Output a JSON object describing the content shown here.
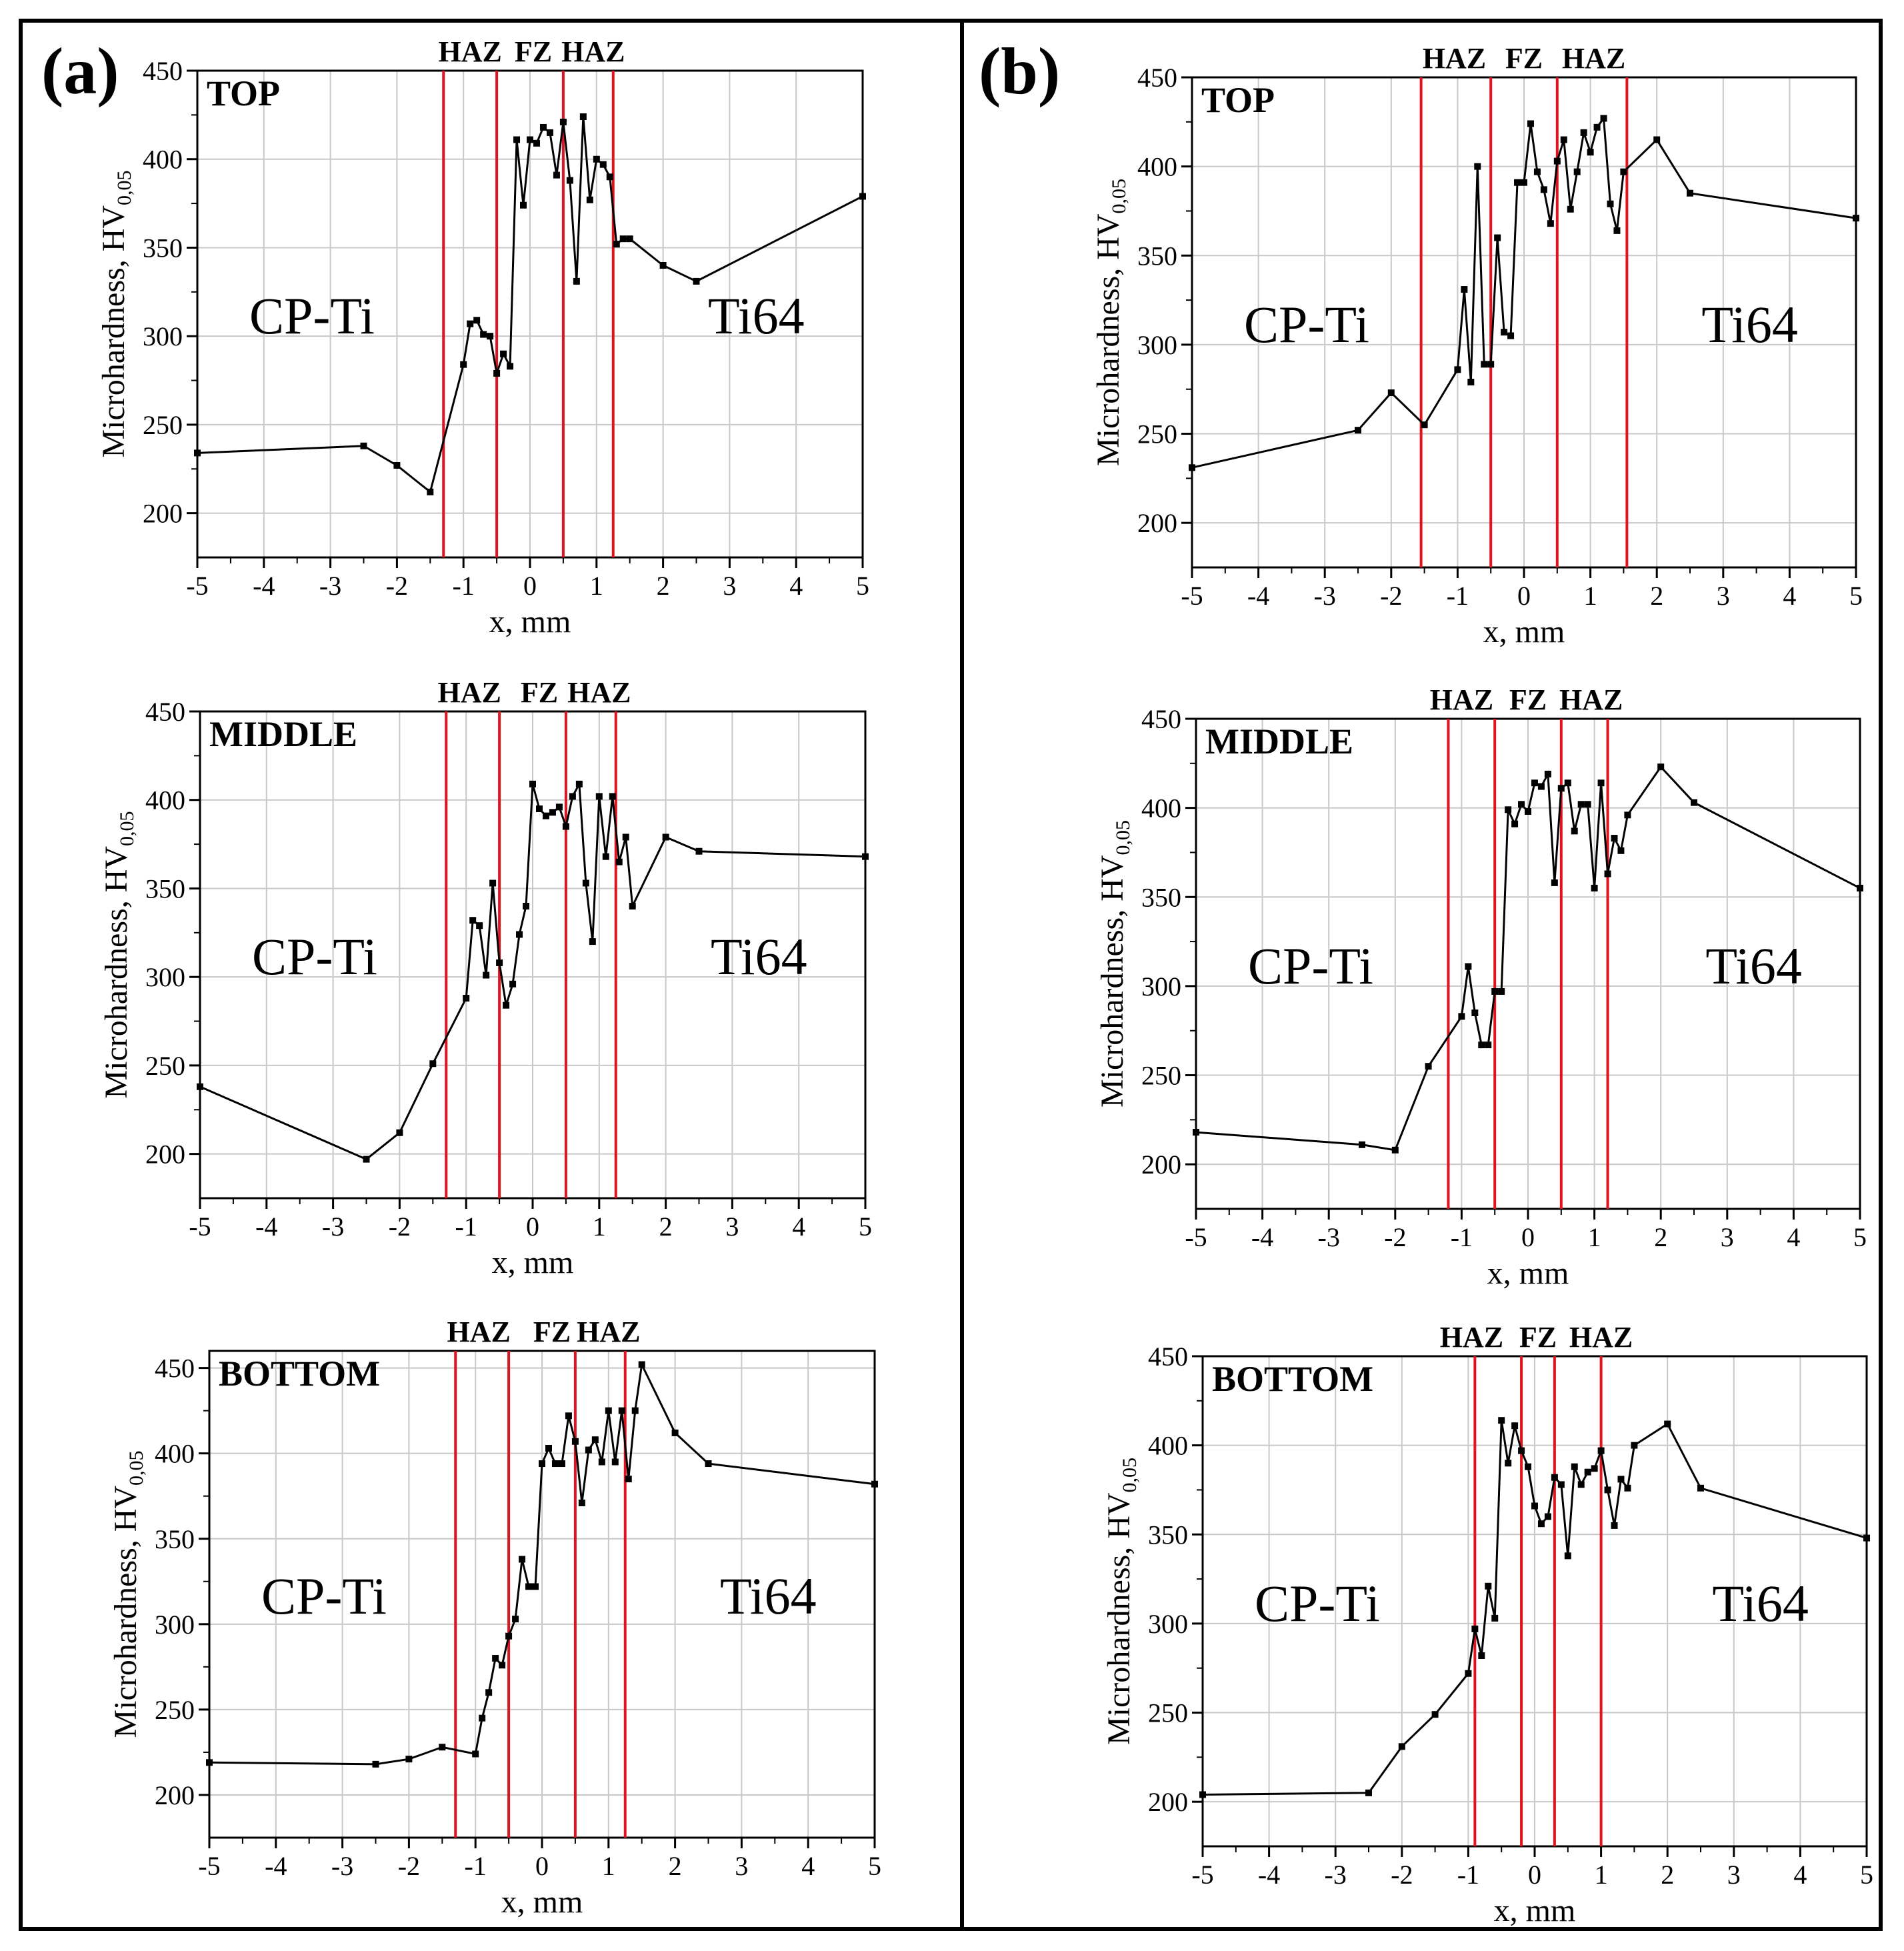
{
  "panels": [
    {
      "label": "(a)"
    },
    {
      "label": "(b)"
    }
  ],
  "chart_data": [
    {
      "type": "line",
      "panel": "(a)",
      "title": "TOP",
      "xlabel": "x, mm",
      "ylabel": "Microhardness, HV",
      "ylabel_sub": "0,05",
      "xlim": [
        -5,
        5
      ],
      "ylim": [
        175,
        450
      ],
      "xticks": [
        "-5",
        "-4",
        "-3",
        "-2",
        "-1",
        "0",
        "1",
        "2",
        "3",
        "4",
        "5"
      ],
      "yticks": [
        "200",
        "250",
        "300",
        "350",
        "400",
        "450"
      ],
      "zone_lines": [
        -1.3,
        -0.5,
        0.5,
        1.25
      ],
      "zone_labels": [
        {
          "text": "HAZ",
          "x": -0.9
        },
        {
          "text": "FZ",
          "x": 0.05
        },
        {
          "text": "HAZ",
          "x": 0.95
        }
      ],
      "left_label": "CP-Ti",
      "right_label": "Ti64",
      "x": [
        -5,
        -2.5,
        -2,
        -1.5,
        -1,
        -0.9,
        -0.8,
        -0.7,
        -0.6,
        -0.5,
        -0.4,
        -0.3,
        -0.2,
        -0.1,
        0,
        0.1,
        0.2,
        0.3,
        0.4,
        0.5,
        0.6,
        0.7,
        0.8,
        0.9,
        1,
        1.1,
        1.2,
        1.3,
        1.4,
        1.5,
        2,
        2.5,
        5
      ],
      "y": [
        234,
        238,
        227,
        212,
        284,
        307,
        309,
        301,
        300,
        279,
        290,
        283,
        411,
        374,
        411,
        409,
        418,
        415,
        391,
        421,
        388,
        331,
        424,
        377,
        400,
        397,
        390,
        352,
        355,
        355,
        340,
        331,
        379
      ]
    },
    {
      "type": "line",
      "panel": "(a)",
      "title": "MIDDLE",
      "xlabel": "x, mm",
      "ylabel": "Microhardness, HV",
      "ylabel_sub": "0,05",
      "xlim": [
        -5,
        5
      ],
      "ylim": [
        175,
        450
      ],
      "xticks": [
        "-5",
        "-4",
        "-3",
        "-2",
        "-1",
        "0",
        "1",
        "2",
        "3",
        "4",
        "5"
      ],
      "yticks": [
        "200",
        "250",
        "300",
        "350",
        "400",
        "450"
      ],
      "zone_lines": [
        -1.3,
        -0.5,
        0.5,
        1.25
      ],
      "zone_labels": [
        {
          "text": "HAZ",
          "x": -0.95
        },
        {
          "text": "FZ",
          "x": 0.1
        },
        {
          "text": "HAZ",
          "x": 1.0
        }
      ],
      "left_label": "CP-Ti",
      "right_label": "Ti64",
      "x": [
        -5,
        -2.5,
        -2,
        -1.5,
        -1,
        -0.9,
        -0.8,
        -0.7,
        -0.6,
        -0.5,
        -0.4,
        -0.3,
        -0.2,
        -0.1,
        0,
        0.1,
        0.2,
        0.3,
        0.4,
        0.5,
        0.6,
        0.7,
        0.8,
        0.9,
        1,
        1.1,
        1.2,
        1.3,
        1.4,
        1.5,
        2,
        2.5,
        5
      ],
      "y": [
        238,
        197,
        212,
        251,
        288,
        332,
        329,
        301,
        353,
        308,
        284,
        296,
        324,
        340,
        409,
        395,
        391,
        393,
        396,
        385,
        402,
        409,
        353,
        320,
        402,
        368,
        402,
        365,
        379,
        340,
        379,
        371,
        368
      ]
    },
    {
      "type": "line",
      "panel": "(a)",
      "title": "BOTTOM",
      "xlabel": "x, mm",
      "ylabel": "Microhardness, HV",
      "ylabel_sub": "0,05",
      "xlim": [
        -5,
        5
      ],
      "ylim": [
        175,
        460
      ],
      "xticks": [
        "-5",
        "-4",
        "-3",
        "-2",
        "-1",
        "0",
        "1",
        "2",
        "3",
        "4",
        "5"
      ],
      "yticks": [
        "200",
        "250",
        "300",
        "350",
        "400",
        "450"
      ],
      "zone_lines": [
        -1.3,
        -0.5,
        0.5,
        1.25
      ],
      "zone_labels": [
        {
          "text": "HAZ",
          "x": -0.95
        },
        {
          "text": "FZ",
          "x": 0.15
        },
        {
          "text": "HAZ",
          "x": 1.0
        }
      ],
      "left_label": "CP-Ti",
      "right_label": "Ti64",
      "x": [
        -5,
        -2.5,
        -2,
        -1.5,
        -1,
        -0.9,
        -0.8,
        -0.7,
        -0.6,
        -0.5,
        -0.4,
        -0.3,
        -0.2,
        -0.1,
        0,
        0.1,
        0.2,
        0.3,
        0.4,
        0.5,
        0.6,
        0.7,
        0.8,
        0.9,
        1,
        1.1,
        1.2,
        1.3,
        1.4,
        1.5,
        2,
        2.5,
        5
      ],
      "y": [
        219,
        218,
        221,
        228,
        224,
        245,
        260,
        280,
        276,
        293,
        303,
        338,
        322,
        322,
        394,
        403,
        394,
        394,
        422,
        407,
        371,
        402,
        408,
        395,
        425,
        395,
        425,
        385,
        425,
        452,
        412,
        394,
        382
      ]
    },
    {
      "type": "line",
      "panel": "(b)",
      "title": "TOP",
      "xlabel": "x, mm",
      "ylabel": "Microhardness, HV",
      "ylabel_sub": "0,05",
      "xlim": [
        -5,
        5
      ],
      "ylim": [
        175,
        450
      ],
      "xticks": [
        "-5",
        "-4",
        "-3",
        "-2",
        "-1",
        "0",
        "1",
        "2",
        "3",
        "4",
        "5"
      ],
      "yticks": [
        "200",
        "250",
        "300",
        "350",
        "400",
        "450"
      ],
      "zone_lines": [
        -1.55,
        -0.5,
        0.5,
        1.55
      ],
      "zone_labels": [
        {
          "text": "HAZ",
          "x": -1.05
        },
        {
          "text": "FZ",
          "x": 0.0
        },
        {
          "text": "HAZ",
          "x": 1.05
        }
      ],
      "left_label": "CP-Ti",
      "right_label": "Ti64",
      "x": [
        -5,
        -2.5,
        -2,
        -1.5,
        -1,
        -0.9,
        -0.8,
        -0.7,
        -0.6,
        -0.5,
        -0.4,
        -0.3,
        -0.2,
        -0.1,
        0,
        0.1,
        0.2,
        0.3,
        0.4,
        0.5,
        0.6,
        0.7,
        0.8,
        0.9,
        1,
        1.1,
        1.2,
        1.3,
        1.4,
        1.5,
        2,
        2.5,
        5
      ],
      "y": [
        231,
        252,
        273,
        255,
        286,
        331,
        279,
        400,
        289,
        289,
        360,
        307,
        305,
        391,
        391,
        424,
        397,
        387,
        368,
        403,
        415,
        376,
        397,
        419,
        408,
        422,
        427,
        379,
        364,
        397,
        415,
        385,
        371
      ]
    },
    {
      "type": "line",
      "panel": "(b)",
      "title": "MIDDLE",
      "xlabel": "x, mm",
      "ylabel": "Microhardness, HV",
      "ylabel_sub": "0,05",
      "xlim": [
        -5,
        5
      ],
      "ylim": [
        175,
        450
      ],
      "xticks": [
        "-5",
        "-4",
        "-3",
        "-2",
        "-1",
        "0",
        "1",
        "2",
        "3",
        "4",
        "5"
      ],
      "yticks": [
        "200",
        "250",
        "300",
        "350",
        "400",
        "450"
      ],
      "zone_lines": [
        -1.2,
        -0.5,
        0.5,
        1.2
      ],
      "zone_labels": [
        {
          "text": "HAZ",
          "x": -1.0
        },
        {
          "text": "FZ",
          "x": 0.0
        },
        {
          "text": "HAZ",
          "x": 0.95
        }
      ],
      "left_label": "CP-Ti",
      "right_label": "Ti64",
      "x": [
        -5,
        -2.5,
        -2,
        -1.5,
        -1,
        -0.9,
        -0.8,
        -0.7,
        -0.6,
        -0.5,
        -0.4,
        -0.3,
        -0.2,
        -0.1,
        0,
        0.1,
        0.2,
        0.3,
        0.4,
        0.5,
        0.6,
        0.7,
        0.8,
        0.9,
        1,
        1.1,
        1.2,
        1.3,
        1.4,
        1.5,
        2,
        2.5,
        5
      ],
      "y": [
        218,
        211,
        208,
        255,
        283,
        311,
        285,
        267,
        267,
        297,
        297,
        399,
        391,
        402,
        398,
        414,
        412,
        419,
        358,
        411,
        414,
        387,
        402,
        402,
        355,
        414,
        363,
        383,
        376,
        396,
        423,
        403,
        355
      ]
    },
    {
      "type": "line",
      "panel": "(b)",
      "title": "BOTTOM",
      "xlabel": "x, mm",
      "ylabel": "Microhardness, HV",
      "ylabel_sub": "0,05",
      "xlim": [
        -5,
        5
      ],
      "ylim": [
        175,
        450
      ],
      "xticks": [
        "-5",
        "-4",
        "-3",
        "-2",
        "-1",
        "0",
        "1",
        "2",
        "3",
        "4",
        "5"
      ],
      "yticks": [
        "200",
        "250",
        "300",
        "350",
        "400",
        "450"
      ],
      "zone_lines": [
        -0.9,
        -0.2,
        0.3,
        1.0
      ],
      "zone_labels": [
        {
          "text": "HAZ",
          "x": -0.95
        },
        {
          "text": "FZ",
          "x": 0.05
        },
        {
          "text": "HAZ",
          "x": 1.0
        }
      ],
      "left_label": "CP-Ti",
      "right_label": "Ti64",
      "x": [
        -5,
        -2.5,
        -2,
        -1.5,
        -1,
        -0.9,
        -0.8,
        -0.7,
        -0.6,
        -0.5,
        -0.4,
        -0.3,
        -0.2,
        -0.1,
        0,
        0.1,
        0.2,
        0.3,
        0.4,
        0.5,
        0.6,
        0.7,
        0.8,
        0.9,
        1,
        1.1,
        1.2,
        1.3,
        1.4,
        1.5,
        2,
        2.5,
        5
      ],
      "y": [
        204,
        205,
        231,
        249,
        272,
        297,
        282,
        321,
        303,
        414,
        390,
        411,
        397,
        388,
        366,
        356,
        360,
        382,
        378,
        338,
        388,
        378,
        385,
        387,
        397,
        375,
        355,
        381,
        376,
        400,
        412,
        376,
        348
      ]
    }
  ]
}
